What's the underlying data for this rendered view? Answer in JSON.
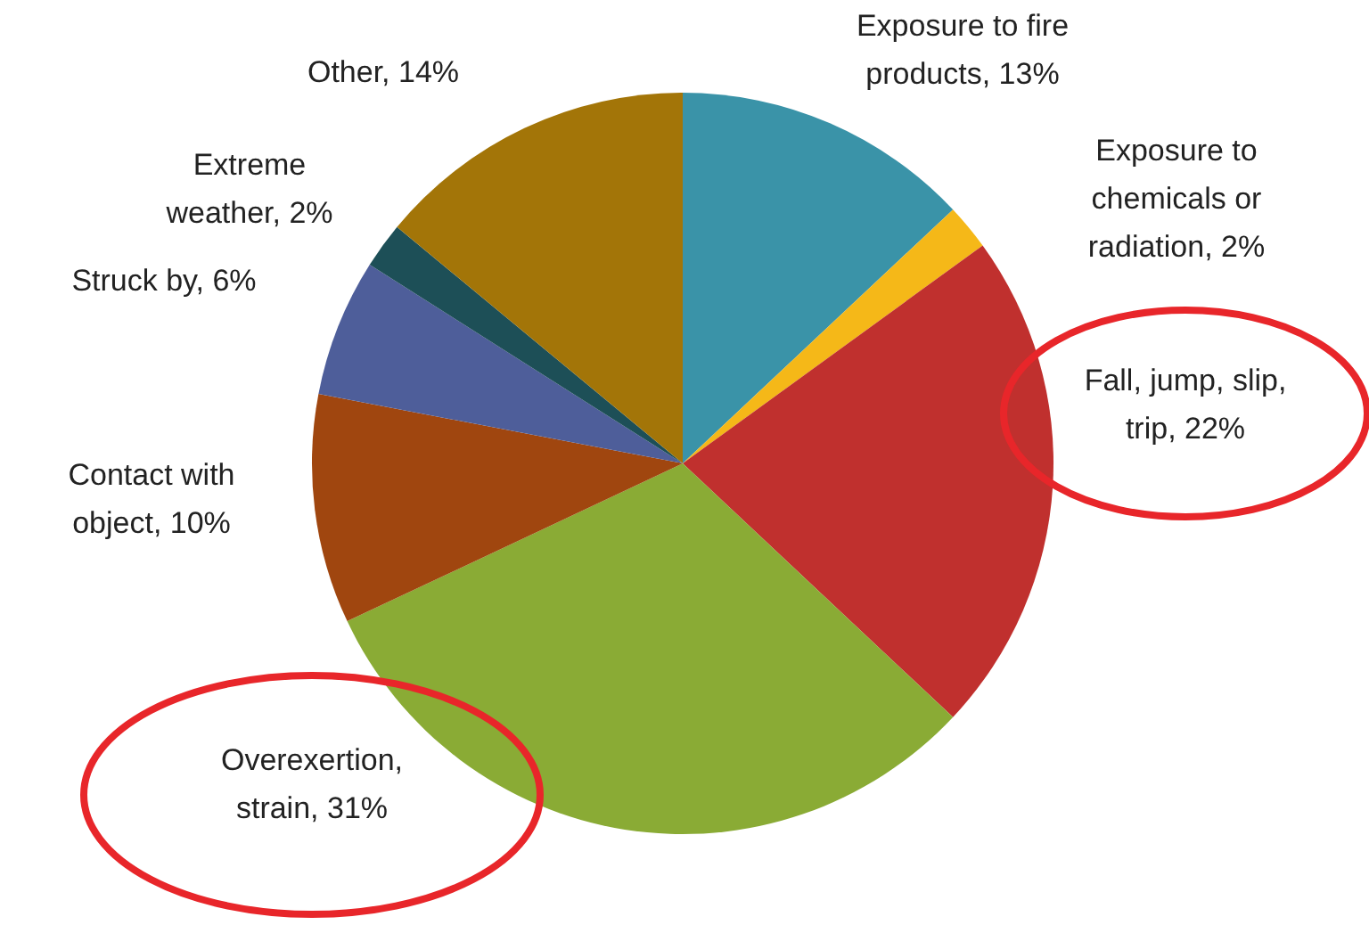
{
  "chart_data": {
    "type": "pie",
    "categories": [
      "Exposure to fire products",
      "Exposure to chemicals or radiation",
      "Fall, jump, slip, trip",
      "Overexertion, strain",
      "Contact with object",
      "Struck by",
      "Extreme weather",
      "Other"
    ],
    "values": [
      13,
      2,
      22,
      31,
      10,
      6,
      2,
      14
    ],
    "value_labels": [
      "13%",
      "2%",
      "22%",
      "31%",
      "10%",
      "6%",
      "2%",
      "14%"
    ],
    "colors": [
      "#3a93a8",
      "#f5b818",
      "#c0302e",
      "#8aab35",
      "#a0460f",
      "#4e5e9a",
      "#1d4f57",
      "#a37508"
    ],
    "legend": false
  }
}
